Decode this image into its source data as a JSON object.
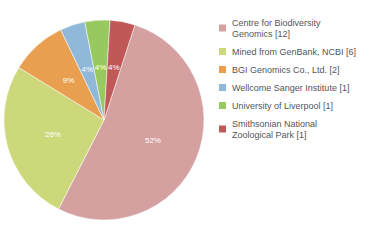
{
  "chart_data": {
    "type": "pie",
    "categories": [
      "Centre for Biodiversity\nGenomics [12]",
      "Mined from GenBank, NCBI [6]",
      "BGI Genomics Co., Ltd. [2]",
      "Wellcome Sanger Institute [1]",
      "University of Liverpool [1]",
      "Smithsonian National\nZoological Park [1]"
    ],
    "values": [
      52,
      26,
      9,
      4,
      4,
      4
    ],
    "value_labels": [
      "52%",
      "26%",
      "9%",
      "4%",
      "4%",
      "4%"
    ],
    "colors": [
      "#d4a0a0",
      "#ccd87a",
      "#e8a050",
      "#90b8d8",
      "#98c860",
      "#c05858"
    ],
    "data_labels": true,
    "legend": "upper right"
  }
}
